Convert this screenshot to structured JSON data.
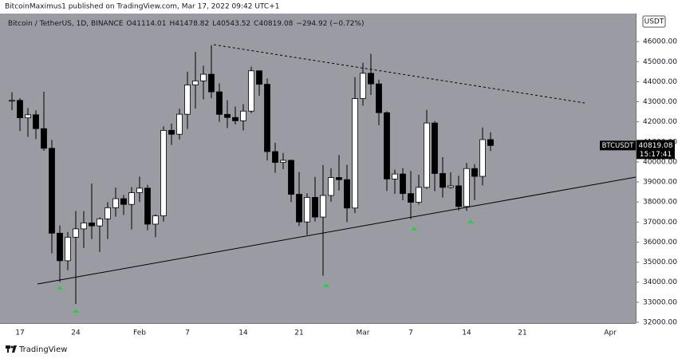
{
  "header": {
    "publisher": "BitcoinMaximus1 published on TradingView.com, Mar 17, 2022 09:42 UTC+1"
  },
  "footer": {
    "brand": "TradingView"
  },
  "chart_data": {
    "type": "candlestick",
    "title": "Bitcoin / TetherUS, 1D, BINANCE",
    "ohlc_labels": [
      "O",
      "H",
      "L",
      "C"
    ],
    "change": "−294.92 (−0.72%)",
    "symbol": "BTCUSDT",
    "countdown": "15:17:41",
    "axis_unit": "USDT",
    "up_color": "#ffffff",
    "down_color": "#000000",
    "background": "#9b9ca3",
    "grid": false,
    "categories": [
      null,
      null,
      "17",
      null,
      null,
      null,
      null,
      null,
      null,
      "24",
      null,
      null,
      null,
      null,
      null,
      null,
      null,
      "Feb",
      null,
      null,
      null,
      null,
      null,
      "7",
      null,
      null,
      null,
      null,
      null,
      null,
      "14",
      null,
      null,
      null,
      null,
      null,
      null,
      "21",
      null,
      null,
      null,
      null,
      null,
      null,
      null,
      "Mar",
      null,
      null,
      null,
      null,
      null,
      "7",
      null,
      null,
      null,
      null,
      null,
      null,
      "14",
      null,
      null,
      null,
      null,
      null,
      null,
      "21",
      null,
      null,
      null,
      null,
      null,
      null,
      null,
      null,
      null,
      null,
      "Apr",
      null,
      null
    ],
    "open": [
      null,
      43071,
      43071,
      42201,
      42352,
      41660,
      40680,
      36445,
      35071,
      36244,
      36660,
      36958,
      36810,
      37160,
      37716,
      38166,
      37882,
      38466,
      38690,
      36896,
      37311,
      41574,
      41382,
      42380,
      43839,
      44042,
      44373,
      43495,
      42373,
      42217,
      42053,
      42535,
      44544,
      43873,
      40515,
      39974,
      40079,
      38386,
      37008,
      38230,
      37250,
      38327,
      39219,
      39116,
      37700,
      43160,
      44421,
      43892,
      42455,
      39148,
      39397,
      38420,
      37988,
      38730,
      41941,
      39422,
      38730,
      38807,
      37777,
      39671,
      39280,
      41114.01,
      null,
      null,
      null,
      null,
      null,
      null,
      null,
      null,
      null,
      null,
      null,
      null,
      null,
      null,
      null,
      null,
      null
    ],
    "high": [
      null,
      43475,
      43180,
      42691,
      42573,
      43500,
      41100,
      36836,
      36500,
      37550,
      37545,
      38920,
      37234,
      38000,
      38720,
      38359,
      38744,
      39265,
      38855,
      37387,
      41772,
      41913,
      42656,
      44500,
      45492,
      44799,
      45821,
      43920,
      43079,
      42760,
      42876,
      44751,
      44549,
      44164,
      40959,
      40444,
      40125,
      39494,
      38429,
      39249,
      39843,
      39683,
      40348,
      39855,
      44225,
      44950,
      45400,
      44101,
      42527,
      39613,
      39693,
      39547,
      39362,
      42594,
      42039,
      40236,
      39486,
      39310,
      39947,
      39887,
      41718,
      41478.82,
      null,
      null,
      null,
      null,
      null,
      null,
      null,
      null,
      null,
      null,
      null,
      null,
      null,
      null,
      null,
      null,
      null
    ],
    "low": [
      null,
      42581,
      41540,
      41250,
      41138,
      40553,
      35440,
      34008,
      34601,
      32917,
      35701,
      36150,
      35507,
      36155,
      37268,
      37351,
      36633,
      38000,
      36586,
      36250,
      37026,
      40843,
      41116,
      41645,
      42666,
      43117,
      43174,
      42000,
      41688,
      41870,
      41570,
      42428,
      43307,
      40073,
      39450,
      39639,
      38000,
      36800,
      36350,
      37036,
      34322,
      38014,
      38573,
      37000,
      37450,
      42809,
      43334,
      41832,
      38550,
      38407,
      38088,
      37155,
      37867,
      38656,
      38539,
      38223,
      38660,
      37578,
      37555,
      38098,
      38828,
      40543.52,
      null,
      null,
      null,
      null,
      null,
      null,
      null,
      null,
      null,
      null,
      null,
      null,
      null,
      null,
      null,
      null,
      null
    ],
    "close": [
      null,
      43071,
      42201,
      42352,
      41660,
      40680,
      36445,
      35071,
      36244,
      36660,
      36958,
      36810,
      37160,
      37716,
      38166,
      37882,
      38466,
      38690,
      36896,
      37311,
      41574,
      41382,
      42380,
      43839,
      44042,
      44373,
      43495,
      42373,
      42217,
      42053,
      42535,
      44544,
      43873,
      40515,
      39974,
      40079,
      38386,
      37008,
      38230,
      37250,
      38327,
      39219,
      39116,
      37700,
      43160,
      44421,
      43892,
      42455,
      39148,
      39397,
      38420,
      37988,
      38730,
      41941,
      39422,
      38730,
      38807,
      37777,
      39671,
      39280,
      41114.01,
      40819.08,
      null,
      null,
      null,
      null,
      null,
      null,
      null,
      null,
      null,
      null,
      null,
      null,
      null,
      null,
      null,
      null,
      null
    ],
    "ylim": [
      31960,
      47400
    ],
    "yticks": [
      {
        "value": 32000,
        "label": "32000.00"
      },
      {
        "value": 33000,
        "label": "33000.00"
      },
      {
        "value": 34000,
        "label": "34000.00"
      },
      {
        "value": 35000,
        "label": "35000.00"
      },
      {
        "value": 36000,
        "label": "36000.00"
      },
      {
        "value": 37000,
        "label": "37000.00"
      },
      {
        "value": 38000,
        "label": "38000.00"
      },
      {
        "value": 39000,
        "label": "39000.00"
      },
      {
        "value": 40000,
        "label": "40000.00"
      },
      {
        "value": 41000,
        "label": "41000.00"
      },
      {
        "value": 42000,
        "label": "42000.00"
      },
      {
        "value": 43000,
        "label": "43000.00"
      },
      {
        "value": 44000,
        "label": "44000.00"
      },
      {
        "value": 45000,
        "label": "45000.00"
      },
      {
        "value": 46000,
        "label": "46000.00"
      }
    ]
  }
}
